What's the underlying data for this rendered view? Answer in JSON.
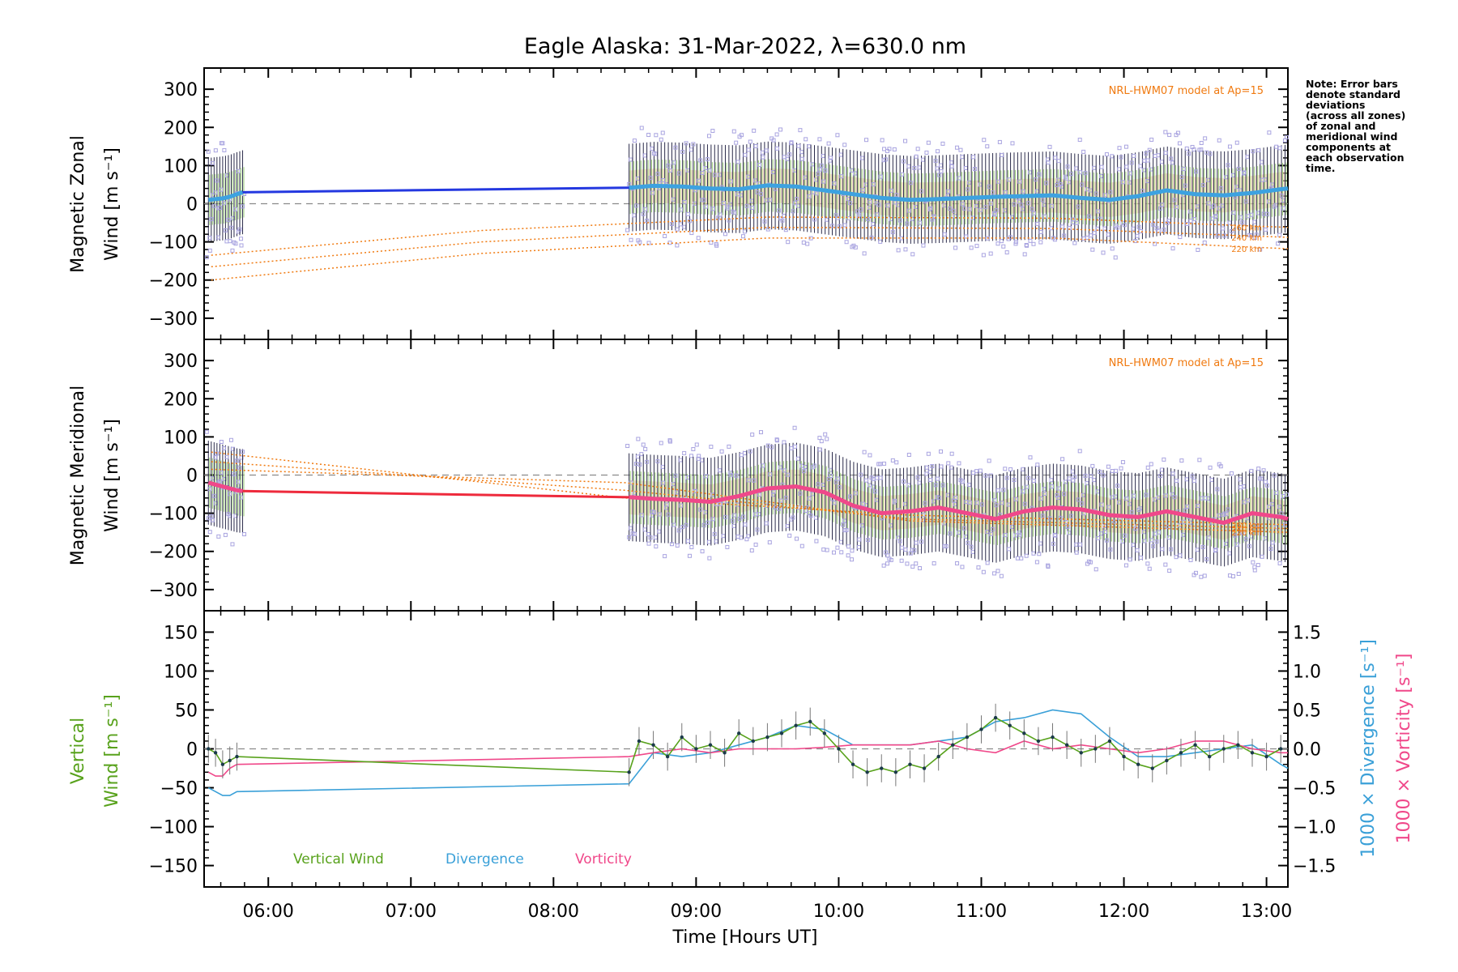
{
  "figure": {
    "title": "Eagle Alaska: 31-Mar-2022, λ=630.0 nm",
    "xlabel": "Time [Hours UT]",
    "note": [
      "Note: Error bars",
      "denote standard",
      "deviations",
      "(across all zones)",
      "of zonal and",
      "meridional wind",
      "components at",
      "each observation",
      "time."
    ]
  },
  "colors": {
    "zonal": "#2438e0",
    "zonal_fit": "#3da2e0",
    "meridional": "#ee2a3c",
    "meridional_fit": "#f0488a",
    "model": "#f07a10",
    "scatter": "#a9a4e0",
    "dash": "#8a8a8a",
    "vertical": "#58a21c",
    "divergence": "#3aa0d8",
    "vorticity": "#f0488a"
  },
  "chart_data": [
    {
      "type": "line",
      "panel": "zonal",
      "ylabel_top": "Magnetic Zonal",
      "ylabel_bottom": "Wind [m s⁻¹]",
      "ylim": [
        -330,
        330
      ],
      "yticks": [
        300,
        200,
        100,
        0,
        -100,
        -200,
        -300
      ],
      "xlim": [
        5.55,
        13.15
      ],
      "xticks": [
        "06:00",
        "07:00",
        "08:00",
        "09:00",
        "10:00",
        "11:00",
        "12:00",
        "13:00"
      ],
      "model_label": "NRL-HWM07 model at Ap=15",
      "altitude_labels": [
        "260 km",
        "240 km",
        "220 km"
      ],
      "series": [
        {
          "role": "wind",
          "x": [
            5.58,
            5.63,
            5.68,
            5.73,
            5.78,
            5.82,
            8.53,
            8.7,
            8.9,
            9.1,
            9.3,
            9.5,
            9.7,
            9.9,
            10.1,
            10.3,
            10.5,
            10.7,
            10.9,
            11.1,
            11.3,
            11.5,
            11.7,
            11.9,
            12.1,
            12.3,
            12.5,
            12.7,
            12.9,
            13.1,
            13.15
          ],
          "y": [
            10,
            12,
            14,
            18,
            25,
            30,
            42,
            47,
            45,
            40,
            38,
            48,
            45,
            35,
            25,
            15,
            10,
            12,
            15,
            18,
            20,
            22,
            15,
            10,
            20,
            35,
            25,
            22,
            28,
            38,
            40
          ]
        },
        {
          "role": "model",
          "name": "260 km",
          "x": [
            5.6,
            7.5,
            9.5,
            11.5,
            13.15
          ],
          "y": [
            -135,
            -70,
            -35,
            -38,
            -62
          ]
        },
        {
          "role": "model",
          "name": "240 km",
          "x": [
            5.6,
            7.5,
            9.5,
            11.5,
            13.15
          ],
          "y": [
            -165,
            -100,
            -62,
            -65,
            -88
          ]
        },
        {
          "role": "model",
          "name": "220 km",
          "x": [
            5.6,
            7.5,
            9.5,
            11.5,
            13.15
          ],
          "y": [
            -200,
            -130,
            -90,
            -90,
            -118
          ]
        }
      ]
    },
    {
      "type": "line",
      "panel": "meridional",
      "ylabel_top": "Magnetic Meridional",
      "ylabel_bottom": "Wind [m s⁻¹]",
      "ylim": [
        -330,
        330
      ],
      "yticks": [
        300,
        200,
        100,
        0,
        -100,
        -200,
        -300
      ],
      "xlim": [
        5.55,
        13.15
      ],
      "model_label": "NRL-HWM07 model at Ap=15",
      "altitude_labels": [
        "260 km",
        "240 km",
        "220 km"
      ],
      "series": [
        {
          "role": "wind",
          "x": [
            5.58,
            5.63,
            5.68,
            5.73,
            5.78,
            5.82,
            8.53,
            8.7,
            8.9,
            9.1,
            9.3,
            9.5,
            9.7,
            9.9,
            10.1,
            10.3,
            10.5,
            10.7,
            10.9,
            11.1,
            11.3,
            11.5,
            11.7,
            11.9,
            12.1,
            12.3,
            12.5,
            12.7,
            12.9,
            13.1,
            13.15
          ],
          "y": [
            -20,
            -25,
            -30,
            -35,
            -40,
            -42,
            -58,
            -62,
            -65,
            -70,
            -55,
            -35,
            -30,
            -45,
            -80,
            -100,
            -95,
            -85,
            -100,
            -115,
            -95,
            -85,
            -90,
            -105,
            -110,
            -95,
            -110,
            -125,
            -100,
            -110,
            -115
          ]
        },
        {
          "role": "model",
          "name": "260 km",
          "x": [
            5.6,
            8.5,
            10.5,
            13.15
          ],
          "y": [
            60,
            -60,
            -105,
            -130
          ]
        },
        {
          "role": "model",
          "name": "240 km",
          "x": [
            5.6,
            8.5,
            10.5,
            13.15
          ],
          "y": [
            35,
            -40,
            -115,
            -140
          ]
        },
        {
          "role": "model",
          "name": "220 km",
          "x": [
            5.6,
            8.5,
            10.5,
            13.15
          ],
          "y": [
            15,
            -20,
            -120,
            -150
          ]
        }
      ]
    },
    {
      "type": "line",
      "panel": "vertical",
      "ylabel_top": "Vertical",
      "ylabel_bottom": "Wind [m s⁻¹]",
      "ylabel_right_1": "1000 × Divergence [s⁻¹]",
      "ylabel_right_2": "1000 × Vorticity [s⁻¹]",
      "ylim": [
        -165,
        165
      ],
      "yticks": [
        150,
        100,
        50,
        0,
        -50,
        -100,
        -150
      ],
      "y2lim": [
        -1.65,
        1.65
      ],
      "y2ticks": [
        "1.5",
        "1.0",
        "0.5",
        "0.0",
        "−0.5",
        "−1.0",
        "−1.5"
      ],
      "xlim": [
        5.55,
        13.15
      ],
      "legend": [
        "Vertical Wind",
        "Divergence",
        "Vorticity"
      ],
      "series": [
        {
          "name": "Vertical Wind",
          "x": [
            5.58,
            5.63,
            5.68,
            5.73,
            5.78,
            8.53,
            8.6,
            8.7,
            8.8,
            8.9,
            9.0,
            9.1,
            9.2,
            9.3,
            9.4,
            9.5,
            9.6,
            9.7,
            9.8,
            9.9,
            10.0,
            10.1,
            10.2,
            10.3,
            10.4,
            10.5,
            10.6,
            10.7,
            10.8,
            10.9,
            11.0,
            11.1,
            11.2,
            11.3,
            11.4,
            11.5,
            11.6,
            11.7,
            11.8,
            11.9,
            12.0,
            12.1,
            12.2,
            12.3,
            12.4,
            12.5,
            12.6,
            12.7,
            12.8,
            12.9,
            13.0,
            13.1
          ],
          "y": [
            0,
            -5,
            -20,
            -15,
            -10,
            -30,
            10,
            5,
            -10,
            15,
            0,
            5,
            -5,
            20,
            10,
            15,
            20,
            30,
            35,
            20,
            0,
            -20,
            -30,
            -25,
            -30,
            -20,
            -25,
            -10,
            5,
            15,
            25,
            40,
            30,
            20,
            10,
            15,
            5,
            -5,
            0,
            10,
            -10,
            -20,
            -25,
            -15,
            -5,
            5,
            -10,
            0,
            5,
            -5,
            -10,
            0
          ]
        },
        {
          "name": "Divergence",
          "axis": "right",
          "x": [
            5.58,
            5.63,
            5.68,
            5.73,
            5.78,
            8.53,
            8.7,
            8.9,
            9.1,
            9.3,
            9.5,
            9.7,
            9.9,
            10.1,
            10.3,
            10.5,
            10.7,
            10.9,
            11.1,
            11.3,
            11.5,
            11.7,
            11.9,
            12.1,
            12.3,
            12.5,
            12.7,
            12.9,
            13.1,
            13.15
          ],
          "y": [
            -0.5,
            -0.55,
            -0.6,
            -0.6,
            -0.55,
            -0.45,
            -0.05,
            -0.1,
            -0.05,
            0.05,
            0.15,
            0.3,
            0.25,
            0.05,
            0.05,
            0.05,
            0.1,
            0.15,
            0.35,
            0.4,
            0.5,
            0.45,
            0.15,
            -0.1,
            -0.1,
            -0.05,
            0.0,
            0.05,
            -0.2,
            -0.25
          ]
        },
        {
          "name": "Vorticity",
          "axis": "right",
          "x": [
            5.58,
            5.63,
            5.68,
            5.73,
            5.78,
            8.53,
            8.7,
            8.9,
            9.1,
            9.3,
            9.5,
            9.7,
            9.9,
            10.1,
            10.3,
            10.5,
            10.7,
            10.9,
            11.1,
            11.3,
            11.5,
            11.7,
            11.9,
            12.1,
            12.3,
            12.5,
            12.7,
            12.9,
            13.1,
            13.15
          ],
          "y": [
            -0.3,
            -0.35,
            -0.35,
            -0.25,
            -0.2,
            -0.1,
            -0.05,
            0.0,
            -0.05,
            0.0,
            0.0,
            0.0,
            0.02,
            0.05,
            0.05,
            0.05,
            0.1,
            0.0,
            -0.05,
            0.1,
            0.0,
            0.05,
            0.0,
            -0.05,
            0.0,
            0.1,
            0.1,
            0.0,
            -0.05,
            -0.05
          ]
        }
      ]
    }
  ]
}
